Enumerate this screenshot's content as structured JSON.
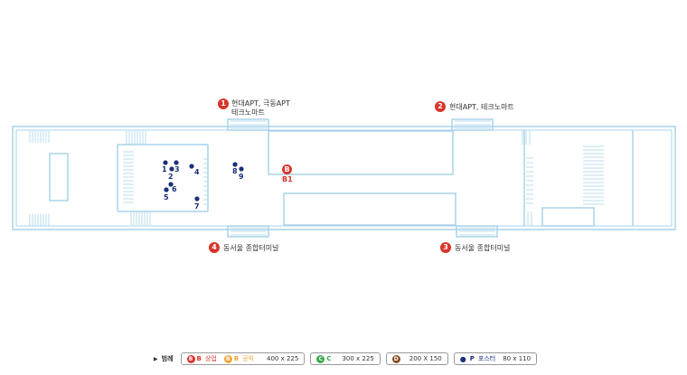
{
  "exits": [
    {
      "number": "1",
      "label": "현대APT, 극동APT",
      "label2": "테크노마트"
    },
    {
      "number": "2",
      "label": "현대APT, 테크노마트"
    },
    {
      "number": "3",
      "label": "동서울 종합터미널"
    },
    {
      "number": "4",
      "label": "동서울 종합터미널"
    }
  ],
  "posters": [
    "1",
    "2",
    "3",
    "4",
    "5",
    "6",
    "7",
    "8",
    "9"
  ],
  "commercial_marker": {
    "badge": "B",
    "label": "B1"
  },
  "legend": {
    "title": "범례",
    "b_commercial": {
      "badge": "B",
      "letter": "B",
      "word": "상업"
    },
    "b_public": {
      "badge": "B",
      "letter": "B",
      "word": "공익",
      "size": "400 x 225"
    },
    "c": {
      "badge": "C",
      "letter": "C",
      "size": "300 x 225"
    },
    "d": {
      "badge": "D",
      "size": "200 X 150"
    },
    "p": {
      "letter": "P",
      "word": "포스터",
      "size": "80 x 110"
    }
  },
  "colors": {
    "wall": "#a9d3ea",
    "exit": "#d9342b",
    "poster": "#1b2f7a",
    "public": "#f2a43a",
    "c_green": "#3aa84a",
    "d_brown": "#8a4a1e"
  }
}
